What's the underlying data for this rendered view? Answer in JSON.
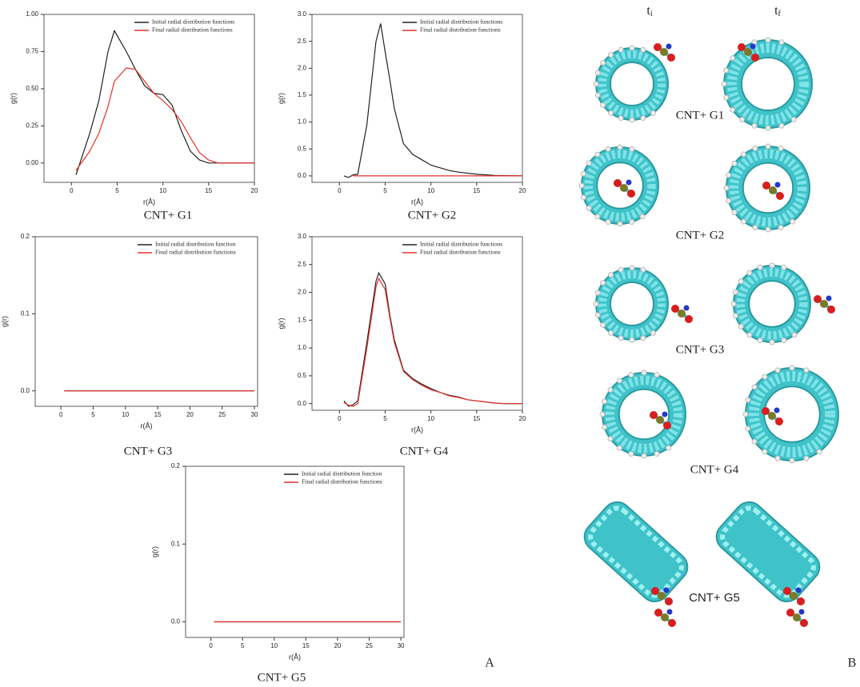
{
  "chart_data": [
    {
      "type": "line",
      "caption": "CNT+ G1",
      "xlabel": "r(Å)",
      "ylabel": "g(r)",
      "xlim": [
        -3,
        20
      ],
      "xticks": [
        0,
        5,
        10,
        15,
        20
      ],
      "ylim": [
        -0.13,
        1.0
      ],
      "yticks": [
        {
          "value": 0,
          "label": "0.00"
        },
        {
          "value": 0.25,
          "label": "0.25"
        },
        {
          "value": 0.5,
          "label": "0.50"
        },
        {
          "value": 0.75,
          "label": "0.75"
        },
        {
          "value": 1,
          "label": "1.00"
        }
      ],
      "legend": "upper right",
      "x": [
        0.5,
        2,
        3,
        4,
        4.7,
        6,
        7,
        8,
        9,
        10,
        11,
        12,
        13,
        14,
        15,
        16,
        17,
        20
      ],
      "series": [
        {
          "name": "Initial radial distribution functions",
          "color": "#222222",
          "values": [
            -0.08,
            0.2,
            0.42,
            0.75,
            0.89,
            0.75,
            0.63,
            0.52,
            0.47,
            0.46,
            0.39,
            0.22,
            0.08,
            0.02,
            0.0,
            0.0,
            0.0,
            0.0
          ]
        },
        {
          "name": "Final radial distribution functions",
          "color": "#e8302a",
          "values": [
            -0.05,
            0.08,
            0.2,
            0.38,
            0.55,
            0.64,
            0.63,
            0.55,
            0.47,
            0.42,
            0.36,
            0.28,
            0.17,
            0.07,
            0.02,
            0.0,
            0.0,
            0.0
          ]
        }
      ]
    },
    {
      "type": "line",
      "caption": "CNT+ G2",
      "xlabel": "r(Å)",
      "ylabel": "g(r)",
      "xlim": [
        -3,
        20
      ],
      "xticks": [
        0,
        5,
        10,
        15,
        20
      ],
      "ylim": [
        -0.12,
        3.0
      ],
      "yticks": [
        {
          "value": 0,
          "label": "0.0"
        },
        0.5,
        {
          "value": 1,
          "label": "1.0"
        },
        1.5,
        {
          "value": 2,
          "label": "2.0"
        },
        2.5,
        {
          "value": 3,
          "label": "3.0"
        }
      ],
      "legend": "upper right",
      "x": [
        0.5,
        1,
        1.5,
        2,
        3,
        4,
        4.5,
        5,
        5.5,
        6,
        7,
        8,
        9,
        10,
        11,
        12,
        13,
        15,
        17,
        20
      ],
      "series": [
        {
          "name": "Initial radial distribution functions",
          "color": "#222222",
          "values": [
            0.0,
            -0.03,
            0.02,
            0.03,
            0.95,
            2.5,
            2.83,
            2.3,
            1.8,
            1.25,
            0.6,
            0.4,
            0.3,
            0.2,
            0.15,
            0.1,
            0.07,
            0.03,
            0.01,
            0.0
          ]
        },
        {
          "name": "Final radial distribution functions",
          "color": "#e8302a",
          "values": [
            null,
            null,
            0.0,
            0.0,
            0.0,
            0.0,
            0.0,
            0.0,
            0.0,
            0.0,
            0.0,
            0.0,
            0.0,
            0.0,
            0.0,
            0.0,
            0.0,
            0.0,
            0.0,
            0.0
          ]
        }
      ]
    },
    {
      "type": "line",
      "caption": "CNT+ G3",
      "xlabel": "r(Å)",
      "ylabel": "g(r)",
      "xlim": [
        -4,
        30.5
      ],
      "xticks": [
        0,
        5,
        10,
        15,
        20,
        25,
        30
      ],
      "ylim": [
        -0.02,
        0.2
      ],
      "yticks": [
        {
          "value": 0,
          "label": "0.0"
        },
        0.1,
        0.2
      ],
      "legend": "upper right",
      "x": [
        0.5,
        30
      ],
      "series": [
        {
          "name": "Initial radial distribution function",
          "color": "#222222",
          "values": [
            0.0,
            0.0
          ]
        },
        {
          "name": "Final radial distribution functions",
          "color": "#e8302a",
          "values": [
            0.0,
            0.0
          ]
        }
      ]
    },
    {
      "type": "line",
      "caption": "CNT+ G4",
      "xlabel": "r(Å)",
      "ylabel": "g(r)",
      "xlim": [
        -3,
        20
      ],
      "xticks": [
        0,
        5,
        10,
        15,
        20
      ],
      "ylim": [
        -0.12,
        3.0
      ],
      "yticks": [
        {
          "value": 0,
          "label": "0.0"
        },
        0.5,
        {
          "value": 1,
          "label": "1.0"
        },
        1.5,
        {
          "value": 2,
          "label": "2.0"
        },
        2.5,
        {
          "value": 3,
          "label": "3.0"
        }
      ],
      "legend": "upper right",
      "x": [
        0.5,
        1,
        1.5,
        2,
        3,
        4,
        4.3,
        5,
        5.5,
        6,
        7,
        8,
        9,
        10,
        11,
        12,
        13,
        14,
        15,
        16,
        17,
        18,
        20
      ],
      "series": [
        {
          "name": "Initial radial distribution functions",
          "color": "#222222",
          "values": [
            0.05,
            -0.05,
            -0.02,
            0.05,
            1.1,
            2.2,
            2.35,
            2.15,
            1.6,
            1.15,
            0.6,
            0.45,
            0.35,
            0.27,
            0.2,
            0.15,
            0.12,
            0.07,
            0.05,
            0.03,
            0.01,
            0.0,
            0.0
          ]
        },
        {
          "name": "Final radial distribution functions",
          "color": "#e8302a",
          "values": [
            0.02,
            -0.03,
            -0.05,
            0.0,
            1.0,
            2.1,
            2.25,
            2.05,
            1.55,
            1.1,
            0.58,
            0.43,
            0.33,
            0.25,
            0.2,
            0.14,
            0.11,
            0.07,
            0.05,
            0.03,
            0.01,
            0.0,
            0.0
          ]
        }
      ]
    },
    {
      "type": "line",
      "caption": "CNT+ G5",
      "xlabel": "r(Å)",
      "ylabel": "g(r)",
      "xlim": [
        -4,
        30.5
      ],
      "xticks": [
        0,
        5,
        10,
        15,
        20,
        25,
        30
      ],
      "ylim": [
        -0.02,
        0.2
      ],
      "yticks": [
        {
          "value": 0,
          "label": "0.0"
        },
        0.1,
        0.2
      ],
      "legend": "upper right",
      "x": [
        0.5,
        30
      ],
      "series": [
        {
          "name": "Initial radial distribution function",
          "color": "#222222",
          "values": [
            0.0,
            0.0
          ]
        },
        {
          "name": "Final radial distribution functions",
          "color": "#e8302a",
          "values": [
            0.0,
            0.0
          ]
        }
      ]
    }
  ],
  "panel_labels": [
    "A",
    "B"
  ],
  "molecular_panel": {
    "column_headers": [
      {
        "base": "t",
        "sub": "i"
      },
      {
        "base": "t",
        "sub": "f"
      }
    ],
    "row_labels": [
      "CNT+ G1",
      "CNT+ G2",
      "CNT+ G3",
      "CNT+ G4",
      "CNT+ G5"
    ]
  }
}
